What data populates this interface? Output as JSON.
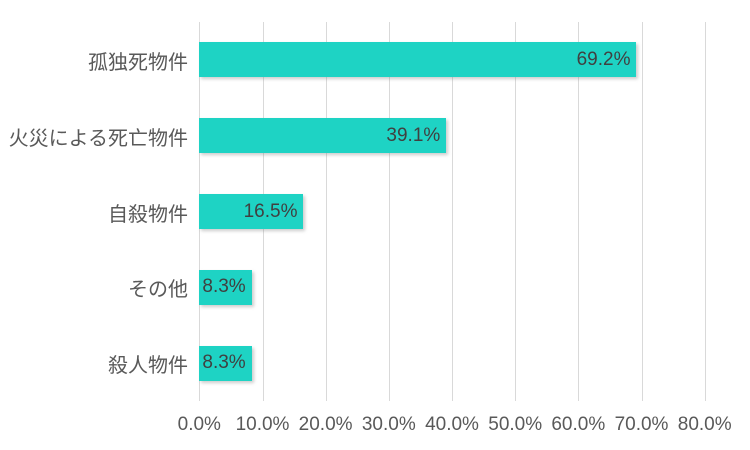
{
  "chart_data": {
    "type": "bar",
    "orientation": "horizontal",
    "categories": [
      "孤独死物件",
      "火災による死亡物件",
      "自殺物件",
      "その他",
      "殺人物件"
    ],
    "values": [
      69.2,
      39.1,
      16.5,
      8.3,
      8.3
    ],
    "value_labels": [
      "69.2%",
      "39.1%",
      "16.5%",
      "8.3%",
      "8.3%"
    ],
    "x_tick_labels": [
      "0.0%",
      "10.0%",
      "20.0%",
      "30.0%",
      "40.0%",
      "50.0%",
      "60.0%",
      "70.0%",
      "80.0%"
    ],
    "xlim": [
      0,
      80
    ],
    "grid": true,
    "legend": false,
    "colors": {
      "bar": "#1ed3c4",
      "data_label": "#404040",
      "axis_label": "#595959",
      "gridline": "#d9d9d9",
      "background": "#ffffff"
    }
  }
}
